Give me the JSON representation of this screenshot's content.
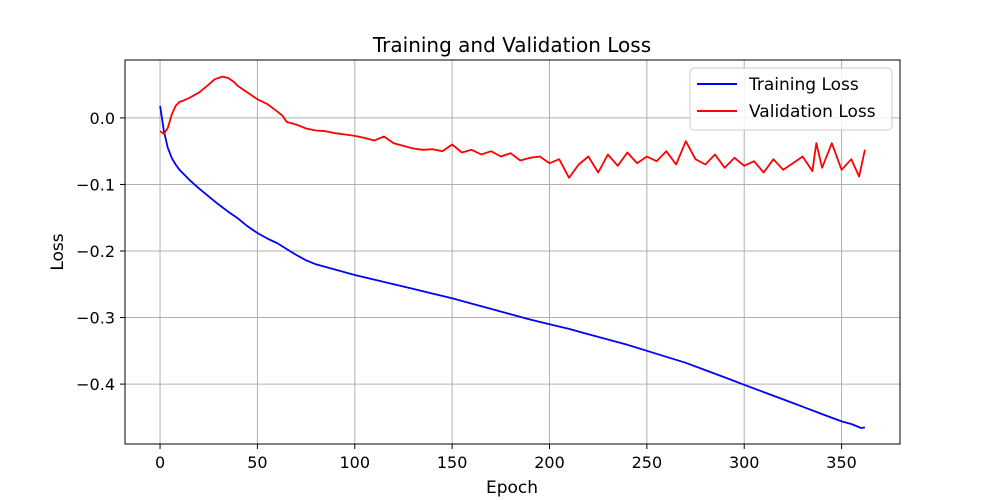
{
  "chart_data": {
    "type": "line",
    "title": "Training and Validation Loss",
    "xlabel": "Epoch",
    "ylabel": "Loss",
    "xlim": [
      -18,
      380
    ],
    "ylim": [
      -0.49,
      0.087
    ],
    "xticks": [
      0,
      50,
      100,
      150,
      200,
      250,
      300,
      350
    ],
    "yticks": [
      0.0,
      -0.1,
      -0.2,
      -0.3,
      -0.4
    ],
    "ytick_labels": [
      "0.0",
      "−0.1",
      "−0.2",
      "−0.3",
      "−0.4"
    ],
    "grid": true,
    "legend_position": "top-right",
    "series": [
      {
        "name": "Training Loss",
        "color": "#0000ff",
        "x": [
          0,
          2,
          4,
          6,
          8,
          10,
          15,
          20,
          25,
          30,
          35,
          40,
          45,
          50,
          55,
          60,
          65,
          70,
          75,
          80,
          90,
          100,
          110,
          120,
          130,
          140,
          150,
          160,
          170,
          180,
          190,
          200,
          210,
          220,
          230,
          240,
          250,
          260,
          270,
          280,
          290,
          300,
          310,
          320,
          330,
          340,
          350,
          355,
          360,
          362
        ],
        "values": [
          0.018,
          -0.02,
          -0.045,
          -0.06,
          -0.07,
          -0.078,
          -0.093,
          -0.106,
          -0.118,
          -0.13,
          -0.141,
          -0.151,
          -0.163,
          -0.173,
          -0.181,
          -0.188,
          -0.197,
          -0.206,
          -0.214,
          -0.22,
          -0.228,
          -0.236,
          -0.243,
          -0.25,
          -0.257,
          -0.264,
          -0.271,
          -0.279,
          -0.287,
          -0.295,
          -0.303,
          -0.31,
          -0.317,
          -0.325,
          -0.333,
          -0.341,
          -0.35,
          -0.359,
          -0.368,
          -0.379,
          -0.39,
          -0.401,
          -0.412,
          -0.423,
          -0.434,
          -0.445,
          -0.456,
          -0.46,
          -0.466,
          -0.465
        ]
      },
      {
        "name": "Validation Loss",
        "color": "#ff0000",
        "x": [
          0,
          2,
          4,
          6,
          8,
          10,
          12,
          15,
          20,
          25,
          28,
          32,
          35,
          38,
          40,
          45,
          50,
          55,
          60,
          63,
          65,
          70,
          75,
          80,
          85,
          90,
          95,
          100,
          105,
          110,
          115,
          120,
          125,
          130,
          135,
          140,
          145,
          150,
          155,
          160,
          165,
          170,
          175,
          180,
          185,
          190,
          195,
          200,
          205,
          210,
          215,
          220,
          225,
          230,
          235,
          240,
          245,
          250,
          255,
          260,
          265,
          270,
          275,
          280,
          285,
          290,
          295,
          300,
          305,
          310,
          315,
          320,
          325,
          330,
          335,
          337,
          340,
          345,
          350,
          355,
          359,
          362
        ],
        "values": [
          -0.02,
          -0.024,
          -0.015,
          0.005,
          0.018,
          0.024,
          0.026,
          0.03,
          0.038,
          0.05,
          0.058,
          0.062,
          0.06,
          0.054,
          0.048,
          0.038,
          0.028,
          0.021,
          0.01,
          0.003,
          -0.006,
          -0.01,
          -0.016,
          -0.019,
          -0.02,
          -0.023,
          -0.025,
          -0.027,
          -0.03,
          -0.034,
          -0.028,
          -0.038,
          -0.042,
          -0.046,
          -0.048,
          -0.047,
          -0.05,
          -0.04,
          -0.052,
          -0.048,
          -0.055,
          -0.05,
          -0.058,
          -0.053,
          -0.064,
          -0.06,
          -0.058,
          -0.068,
          -0.062,
          -0.09,
          -0.07,
          -0.058,
          -0.082,
          -0.055,
          -0.072,
          -0.052,
          -0.068,
          -0.058,
          -0.065,
          -0.05,
          -0.07,
          -0.035,
          -0.062,
          -0.07,
          -0.055,
          -0.075,
          -0.06,
          -0.072,
          -0.065,
          -0.082,
          -0.062,
          -0.078,
          -0.068,
          -0.058,
          -0.08,
          -0.038,
          -0.075,
          -0.038,
          -0.078,
          -0.062,
          -0.088,
          -0.048
        ]
      }
    ]
  }
}
